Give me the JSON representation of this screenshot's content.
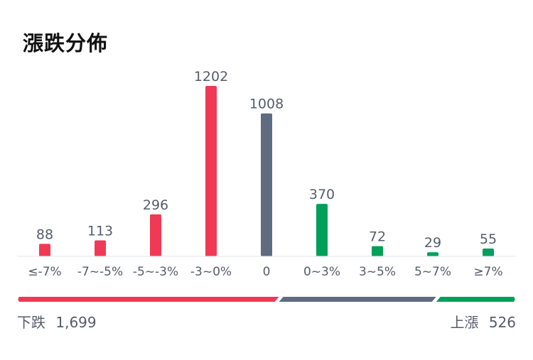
{
  "title": "漲跌分佈",
  "chart_data": {
    "type": "bar",
    "categories": [
      "≤-7%",
      "-7~-5%",
      "-5~-3%",
      "-3~0%",
      "0",
      "0~3%",
      "3~5%",
      "5~7%",
      "≥7%"
    ],
    "values": [
      88,
      113,
      296,
      1202,
      1008,
      370,
      72,
      29,
      55
    ],
    "value_labels": [
      "88",
      "113",
      "296",
      "1202",
      "1008",
      "370",
      "72",
      "29",
      "55"
    ],
    "ylim": [
      0,
      1202
    ],
    "grid": false,
    "legend": "none",
    "colors": {
      "down": "#f03a55",
      "flat": "#5f6b80",
      "up": "#00a05a",
      "baseline": "#e3e6ea",
      "label": "#555d69"
    },
    "bar_colors": [
      "down",
      "down",
      "down",
      "down",
      "flat",
      "up",
      "up",
      "up",
      "up"
    ],
    "ratio": {
      "down": 1699,
      "flat": 1008,
      "up": 526
    }
  },
  "footer": {
    "down_label": "下跌",
    "down_value": "1,699",
    "up_label": "上漲",
    "up_value": "526"
  }
}
